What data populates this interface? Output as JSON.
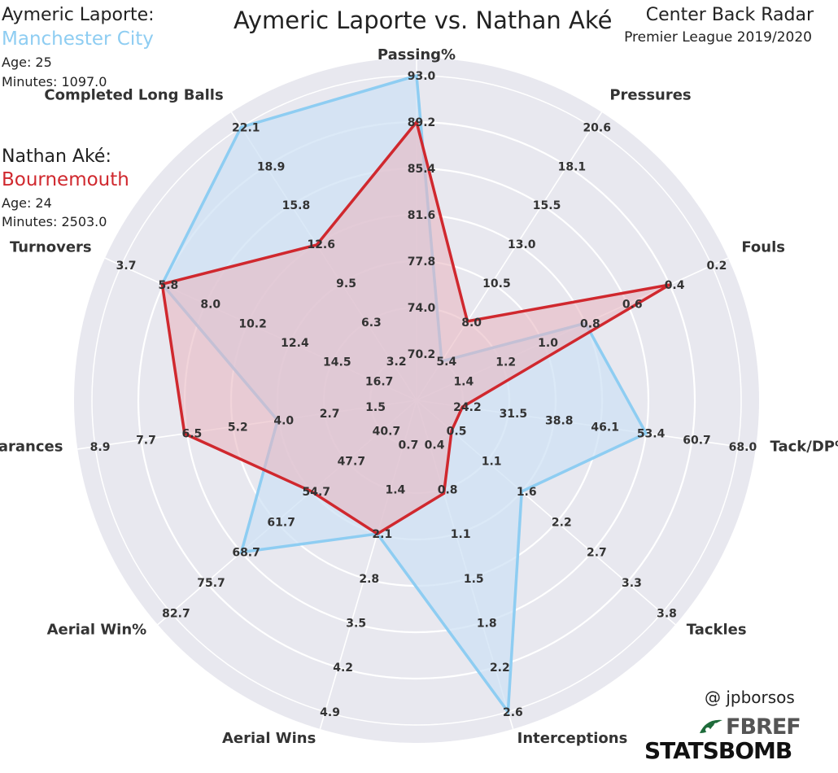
{
  "header": {
    "title": "Aymeric Laporte vs. Nathan Aké",
    "radar_type": "Center Back Radar",
    "competition": "Premier League 2019/2020",
    "credit": "@ jpborsos",
    "source_logo_1": "FBREF",
    "source_logo_2": "STATSBOMB"
  },
  "players": [
    {
      "name": "Aymeric Laporte:",
      "club": "Manchester City",
      "age": "Age: 25",
      "minutes": "Minutes: 1097.0",
      "color": "#8ecdf2"
    },
    {
      "name": "Nathan Aké:",
      "club": "Bournemouth",
      "age": "Age: 24",
      "minutes": "Minutes: 2503.0",
      "color": "#d0282e"
    }
  ],
  "colors": {
    "background_outer": "#e8e8ef",
    "background_inner": "#e6e6ee",
    "grid": "#ffffff",
    "player1_fill": "#cfe1f4",
    "player2_fill": "#e7b7c2"
  },
  "chart_data": {
    "type": "radar",
    "title": "Aymeric Laporte vs. Nathan Aké",
    "axes": [
      {
        "label": "Passing%",
        "ticks": [
          "70.2",
          "74.0",
          "77.8",
          "81.6",
          "85.4",
          "89.2",
          "93.0"
        ]
      },
      {
        "label": "Pressures",
        "ticks": [
          "5.4",
          "8.0",
          "10.5",
          "13.0",
          "15.5",
          "18.1",
          "20.6"
        ]
      },
      {
        "label": "Fouls",
        "ticks": [
          "1.4",
          "1.2",
          "1.0",
          "0.8",
          "0.6",
          "0.4",
          "0.2"
        ]
      },
      {
        "label": "Tack/DP%",
        "ticks": [
          "24.2",
          "31.5",
          "38.8",
          "46.1",
          "53.4",
          "60.7",
          "68.0"
        ]
      },
      {
        "label": "Tackles",
        "ticks": [
          "0.5",
          "1.1",
          "1.6",
          "2.2",
          "2.7",
          "3.3",
          "3.8"
        ]
      },
      {
        "label": "Interceptions",
        "ticks": [
          "0.4",
          "0.8",
          "1.1",
          "1.5",
          "1.8",
          "2.2",
          "2.6"
        ]
      },
      {
        "label": "Aerial Wins",
        "ticks": [
          "0.7",
          "1.4",
          "2.1",
          "2.8",
          "3.5",
          "4.2",
          "4.9"
        ]
      },
      {
        "label": "Aerial Win%",
        "ticks": [
          "40.7",
          "47.7",
          "54.7",
          "61.7",
          "68.7",
          "75.7",
          "82.7"
        ]
      },
      {
        "label": "Clearances",
        "ticks": [
          "1.5",
          "2.7",
          "4.0",
          "5.2",
          "6.5",
          "7.7",
          "8.9"
        ]
      },
      {
        "label": "Turnovers",
        "ticks": [
          "16.7",
          "14.5",
          "12.4",
          "10.2",
          "8.0",
          "5.8",
          "3.7"
        ]
      },
      {
        "label": "Completed Long Balls",
        "ticks": [
          "3.2",
          "6.3",
          "9.5",
          "12.6",
          "15.8",
          "18.9",
          "22.1"
        ]
      }
    ],
    "series": [
      {
        "name": "Aymeric Laporte",
        "values": [
          93.0,
          5.4,
          0.8,
          53.4,
          1.6,
          2.6,
          2.1,
          68.7,
          4.0,
          5.8,
          22.1
        ]
      },
      {
        "name": "Nathan Aké",
        "values": [
          89.2,
          8.0,
          0.4,
          24.2,
          0.5,
          0.8,
          2.1,
          54.7,
          6.5,
          5.8,
          12.6
        ]
      }
    ],
    "grid": true,
    "legend": "top-left"
  }
}
